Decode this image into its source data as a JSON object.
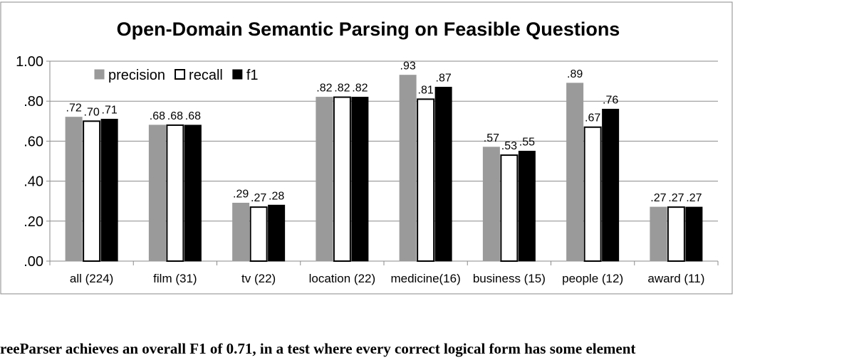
{
  "chart_data": {
    "type": "bar",
    "title": "Open-Domain Semantic Parsing on Feasible Questions",
    "categories": [
      "all (224)",
      "film (31)",
      "tv (22)",
      "location (22)",
      "medicine(16)",
      "business (15)",
      "people (12)",
      "award (11)"
    ],
    "series": [
      {
        "name": "precision",
        "color": "#9a9a9a",
        "stroke": "#9a9a9a",
        "values": [
          0.72,
          0.68,
          0.29,
          0.82,
          0.93,
          0.57,
          0.89,
          0.27
        ],
        "labels": [
          ".72",
          ".68",
          ".29",
          ".82",
          ".93",
          ".57",
          ".89",
          ".27"
        ]
      },
      {
        "name": "recall",
        "color": "#ffffff",
        "stroke": "#000000",
        "values": [
          0.7,
          0.68,
          0.27,
          0.82,
          0.81,
          0.53,
          0.67,
          0.27
        ],
        "labels": [
          ".70",
          ".68",
          ".27",
          ".82",
          ".81",
          ".53",
          ".67",
          ".27"
        ]
      },
      {
        "name": "f1",
        "color": "#000000",
        "stroke": "#000000",
        "values": [
          0.71,
          0.68,
          0.28,
          0.82,
          0.87,
          0.55,
          0.76,
          0.27
        ],
        "labels": [
          ".71",
          ".68",
          ".28",
          ".82",
          ".87",
          ".55",
          ".76",
          ".27"
        ]
      }
    ],
    "yticks": [
      0,
      0.2,
      0.4,
      0.6,
      0.8,
      1.0
    ],
    "ytick_labels": [
      ".00",
      ".20",
      ".40",
      ".60",
      ".80",
      "1.00"
    ],
    "ylim": [
      0,
      1.0
    ],
    "grid": true,
    "legend": "top-left"
  },
  "caption": "reeParser achieves an overall F1 of 0.71, in a test where every correct logical form has some element"
}
